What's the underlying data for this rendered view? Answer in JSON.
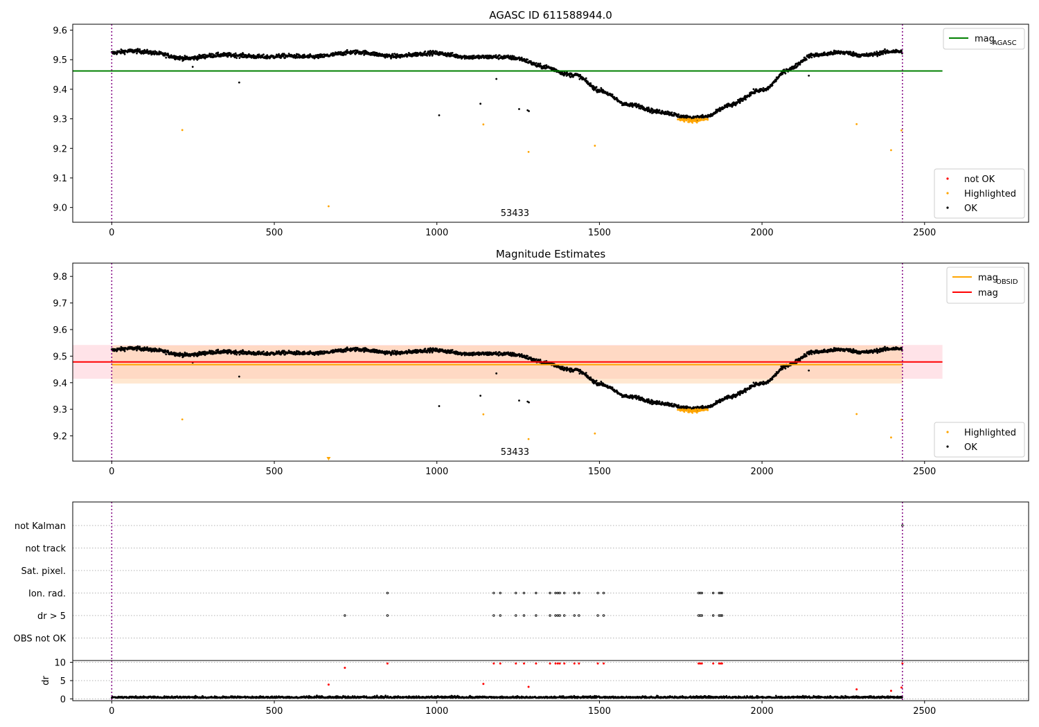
{
  "figure": {
    "annotation": "53433",
    "colors": {
      "ok": "#000000",
      "highlighted": "#ffa500",
      "not_ok": "#ff0000",
      "agasc_line": "#008000",
      "mag_line": "#ff0000",
      "obsid_line": "#ffa500",
      "boundary": "#800080"
    }
  },
  "chart_data": [
    {
      "type": "scatter",
      "title": "AGASC ID 611588944.0",
      "xlim": [
        -120,
        2820
      ],
      "ylim": [
        8.95,
        9.62
      ],
      "xticks": [
        0,
        500,
        1000,
        1500,
        2000,
        2500
      ],
      "yticks": [
        9.0,
        9.1,
        9.2,
        9.3,
        9.4,
        9.5,
        9.6
      ],
      "hlines": [
        {
          "name": "mag_AGASC",
          "y": 9.462,
          "xmin": -120,
          "xmax": 2555,
          "color": "#008000"
        }
      ],
      "vlines": [
        0,
        2432
      ],
      "legend_top": {
        "placement": "top-right",
        "entries": [
          {
            "label": "mag",
            "sub": "AGASC",
            "color": "#008000"
          }
        ]
      },
      "legend_bottom": {
        "placement": "bottom-right",
        "entries": [
          {
            "label": "not OK",
            "color": "#ff0000"
          },
          {
            "label": "Highlighted",
            "color": "#ffa500"
          },
          {
            "label": "OK",
            "color": "#000000"
          }
        ]
      },
      "series": [
        {
          "name": "OK",
          "kind": "trend",
          "count": 2432
        },
        {
          "name": "OK outliers",
          "points": [
            [
              392,
              9.423
            ],
            [
              1007,
              9.312
            ],
            [
              1134,
              9.351
            ],
            [
              1253,
              9.333
            ],
            [
              1279,
              9.329
            ],
            [
              1283,
              9.326
            ],
            [
              1183,
              9.435
            ],
            [
              2144,
              9.446
            ],
            [
              249,
              9.476
            ]
          ]
        },
        {
          "name": "Highlighted",
          "points": [
            [
              217,
              9.262
            ],
            [
              667,
              9.004
            ],
            [
              1143,
              9.281
            ],
            [
              1282,
              9.188
            ],
            [
              1486,
              9.209
            ],
            [
              2291,
              9.282
            ],
            [
              2397,
              9.194
            ],
            [
              2429,
              9.261
            ]
          ]
        }
      ]
    },
    {
      "type": "scatter",
      "title": "Magnitude Estimates",
      "xlim": [
        -120,
        2820
      ],
      "ylim": [
        9.105,
        9.85
      ],
      "xticks": [
        0,
        500,
        1000,
        1500,
        2000,
        2500
      ],
      "yticks": [
        9.2,
        9.3,
        9.4,
        9.5,
        9.6,
        9.7,
        9.8
      ],
      "bands": [
        {
          "name": "mag band",
          "y0": 9.415,
          "y1": 9.542,
          "xmin": -120,
          "xmax": 2555,
          "color": "#ffc0cb"
        },
        {
          "name": "mag_OBSID band",
          "y0": 9.397,
          "y1": 9.54,
          "xmin": 0,
          "xmax": 2432,
          "color": "#ffcc99"
        }
      ],
      "hlines": [
        {
          "name": "mag_OBSID",
          "y": 9.468,
          "xmin": 0,
          "xmax": 2432,
          "color": "#ffa500"
        },
        {
          "name": "mag",
          "y": 9.478,
          "xmin": -120,
          "xmax": 2555,
          "color": "#ff0000"
        }
      ],
      "vlines": [
        0,
        2432
      ],
      "legend_top": {
        "placement": "top-right",
        "entries": [
          {
            "label": "mag",
            "sub": "OBSID",
            "color": "#ffa500"
          },
          {
            "label": "mag",
            "color": "#ff0000"
          }
        ]
      },
      "legend_bottom": {
        "placement": "bottom-right",
        "entries": [
          {
            "label": "Highlighted",
            "color": "#ffa500"
          },
          {
            "label": "OK",
            "color": "#000000"
          }
        ]
      },
      "series": [
        {
          "name": "OK",
          "kind": "trend",
          "count": 2432
        },
        {
          "name": "OK outliers",
          "points": [
            [
              392,
              9.423
            ],
            [
              1007,
              9.312
            ],
            [
              1134,
              9.351
            ],
            [
              1253,
              9.333
            ],
            [
              1279,
              9.329
            ],
            [
              1283,
              9.326
            ],
            [
              1183,
              9.435
            ],
            [
              2144,
              9.446
            ],
            [
              249,
              9.476
            ]
          ]
        },
        {
          "name": "Highlighted",
          "points": [
            [
              217,
              9.262
            ],
            [
              1143,
              9.281
            ],
            [
              1282,
              9.188
            ],
            [
              1486,
              9.209
            ],
            [
              2291,
              9.282
            ],
            [
              2397,
              9.194
            ],
            [
              2429,
              9.261
            ]
          ]
        },
        {
          "name": "Highlighted off-scale",
          "points": [
            [
              667,
              9.105
            ]
          ]
        }
      ]
    },
    {
      "type": "scatter",
      "title": "",
      "xlim": [
        -120,
        2820
      ],
      "xticks": [
        0,
        500,
        1000,
        1500,
        2000,
        2500
      ],
      "flag_rows": [
        "not Kalman",
        "not track",
        "Sat. pixel.",
        "Ion. rad.",
        "dr > 5",
        "OBS not OK"
      ],
      "flags": {
        "Ion. rad.": [
          848,
          1175,
          1195,
          1243,
          1268,
          1305,
          1348,
          1365,
          1372,
          1378,
          1392,
          1423,
          1437,
          1495,
          1513,
          1805,
          1810,
          1815,
          1850,
          1868,
          1873,
          1877
        ],
        "dr > 5": [
          717,
          848,
          1175,
          1195,
          1243,
          1268,
          1305,
          1348,
          1365,
          1372,
          1378,
          1392,
          1423,
          1437,
          1495,
          1513,
          1805,
          1810,
          1815,
          1850,
          1868,
          1873,
          1877
        ],
        "not Kalman": [
          2432
        ]
      },
      "dr_ylabel": "dr",
      "dr_yticks": [
        0,
        5,
        10
      ],
      "dr_ylim": [
        -0.5,
        10.5
      ],
      "vlines": [
        0,
        2432
      ],
      "series": [
        {
          "name": "dr OK",
          "kind": "noise",
          "count": 2432
        },
        {
          "name": "dr not OK",
          "points": [
            [
              717,
              8.5
            ],
            [
              667,
              3.9
            ],
            [
              1143,
              4.1
            ],
            [
              1282,
              3.3
            ],
            [
              2291,
              2.6
            ],
            [
              2397,
              2.2
            ],
            [
              2429,
              3.1
            ],
            [
              2432,
              9.7
            ],
            [
              848,
              9.7
            ],
            [
              1175,
              9.7
            ],
            [
              1195,
              9.7
            ],
            [
              1243,
              9.7
            ],
            [
              1268,
              9.7
            ],
            [
              1305,
              9.7
            ],
            [
              1348,
              9.7
            ],
            [
              1365,
              9.7
            ],
            [
              1372,
              9.7
            ],
            [
              1378,
              9.7
            ],
            [
              1392,
              9.7
            ],
            [
              1423,
              9.7
            ],
            [
              1437,
              9.7
            ],
            [
              1495,
              9.7
            ],
            [
              1513,
              9.7
            ],
            [
              1805,
              9.7
            ],
            [
              1810,
              9.7
            ],
            [
              1815,
              9.7
            ],
            [
              1850,
              9.7
            ],
            [
              1868,
              9.7
            ],
            [
              1873,
              9.7
            ],
            [
              1877,
              9.7
            ]
          ]
        }
      ]
    }
  ]
}
